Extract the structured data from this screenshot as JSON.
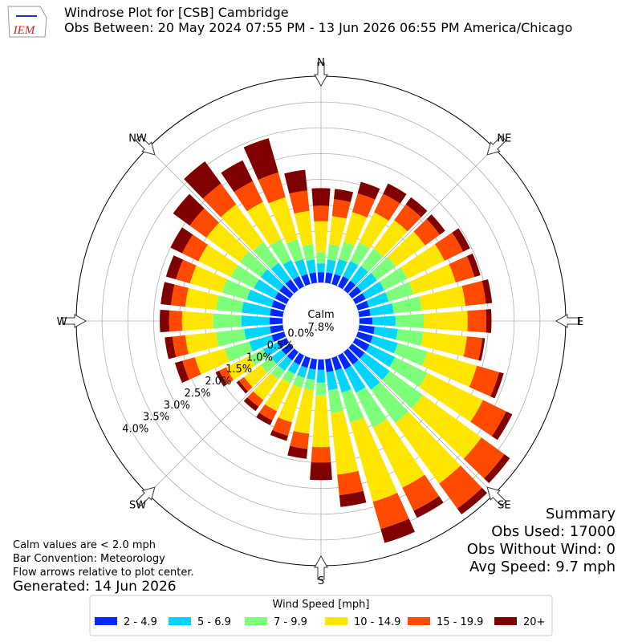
{
  "chart_data": {
    "type": "windrose",
    "title": "Windrose Plot for [CSB] Cambridge",
    "subtitle": "Obs Between: 20 May 2024 07:55 PM - 13 Jun 2026 06:55 PM America/Chicago",
    "logo_text": "IEM",
    "x": [
      0,
      10,
      20,
      30,
      40,
      50,
      60,
      70,
      80,
      90,
      100,
      110,
      120,
      130,
      140,
      150,
      160,
      170,
      180,
      190,
      200,
      210,
      220,
      230,
      240,
      250,
      260,
      270,
      280,
      290,
      300,
      310,
      320,
      330,
      340,
      350
    ],
    "xlim": [
      0,
      360
    ],
    "xticks": [
      {
        "value": 0,
        "label": "N"
      },
      {
        "value": 45,
        "label": "NE"
      },
      {
        "value": 90,
        "label": "E"
      },
      {
        "value": 135,
        "label": "SE"
      },
      {
        "value": 180,
        "label": "S"
      },
      {
        "value": 225,
        "label": "SW"
      },
      {
        "value": 270,
        "label": "W"
      },
      {
        "value": 315,
        "label": "NW"
      }
    ],
    "rlim": [
      0,
      4.0
    ],
    "rticks": [
      {
        "value": 0,
        "label": "0.0%"
      },
      {
        "value": 0.5,
        "label": "0.5%"
      },
      {
        "value": 1.0,
        "label": "1.0%"
      },
      {
        "value": 1.5,
        "label": "1.5%"
      },
      {
        "value": 2.0,
        "label": "2.0%"
      },
      {
        "value": 2.5,
        "label": "2.5%"
      },
      {
        "value": 3.0,
        "label": "3.0%"
      },
      {
        "value": 3.5,
        "label": "3.5%"
      },
      {
        "value": 4.0,
        "label": "4.0%"
      }
    ],
    "grid": true,
    "calm_label": "Calm",
    "calm_value": {
      "value": 7.8,
      "label": "7.8%"
    },
    "legend_title": "Wind Speed [mph]",
    "series": [
      {
        "name": "2 - 4.9",
        "color": "#0028ff",
        "values": [
          0.2,
          0.2,
          0.2,
          0.22,
          0.22,
          0.22,
          0.22,
          0.22,
          0.22,
          0.25,
          0.3,
          0.3,
          0.3,
          0.3,
          0.3,
          0.3,
          0.25,
          0.25,
          0.2,
          0.2,
          0.2,
          0.2,
          0.2,
          0.2,
          0.2,
          0.25,
          0.25,
          0.25,
          0.25,
          0.25,
          0.25,
          0.25,
          0.25,
          0.22,
          0.2,
          0.2
        ]
      },
      {
        "name": "5 - 6.9",
        "color": "#00d4ff",
        "values": [
          0.17,
          0.25,
          0.3,
          0.33,
          0.35,
          0.38,
          0.4,
          0.4,
          0.45,
          0.45,
          0.45,
          0.5,
          0.55,
          0.6,
          0.6,
          0.5,
          0.45,
          0.35,
          0.25,
          0.2,
          0.2,
          0.2,
          0.25,
          0.25,
          0.3,
          0.45,
          0.5,
          0.55,
          0.55,
          0.5,
          0.45,
          0.45,
          0.4,
          0.35,
          0.3,
          0.25
        ]
      },
      {
        "name": "7 - 9.9",
        "color": "#7dff7a",
        "values": [
          0.22,
          0.3,
          0.35,
          0.4,
          0.42,
          0.45,
          0.5,
          0.5,
          0.55,
          0.55,
          0.5,
          0.6,
          0.7,
          0.8,
          0.8,
          0.75,
          0.6,
          0.45,
          0.25,
          0.2,
          0.2,
          0.2,
          0.2,
          0.25,
          0.3,
          0.5,
          0.55,
          0.55,
          0.5,
          0.5,
          0.5,
          0.5,
          0.5,
          0.45,
          0.4,
          0.3
        ]
      },
      {
        "name": "10 - 14.9",
        "color": "#ffe600",
        "values": [
          0.6,
          0.55,
          0.6,
          0.65,
          0.68,
          0.7,
          0.8,
          0.85,
          0.85,
          0.85,
          0.85,
          1.0,
          1.2,
          1.4,
          1.45,
          1.3,
          1.6,
          1.2,
          1.0,
          0.85,
          0.7,
          0.6,
          0.5,
          0.4,
          0.5,
          0.6,
          0.6,
          0.6,
          0.6,
          0.65,
          0.7,
          0.8,
          0.9,
          0.8,
          0.85,
          0.65
        ]
      },
      {
        "name": "15 - 19.9",
        "color": "#ff4a00",
        "values": [
          0.3,
          0.33,
          0.38,
          0.4,
          0.38,
          0.35,
          0.4,
          0.38,
          0.4,
          0.36,
          0.3,
          0.45,
          0.5,
          0.55,
          0.6,
          0.5,
          0.55,
          0.4,
          0.3,
          0.3,
          0.27,
          0.2,
          0.16,
          0.12,
          0.15,
          0.25,
          0.25,
          0.25,
          0.28,
          0.28,
          0.35,
          0.4,
          0.5,
          0.45,
          0.5,
          0.4
        ]
      },
      {
        "name": "20+",
        "color": "#800000",
        "values": [
          0.34,
          0.2,
          0.23,
          0.22,
          0.17,
          0.13,
          0.15,
          0.12,
          0.12,
          0.1,
          0.05,
          0.09,
          0.13,
          0.13,
          0.14,
          0.15,
          0.28,
          0.23,
          0.34,
          0.19,
          0.1,
          0.1,
          0.1,
          0.06,
          0.08,
          0.15,
          0.15,
          0.18,
          0.2,
          0.2,
          0.25,
          0.4,
          0.53,
          0.45,
          0.69,
          0.4
        ]
      }
    ],
    "notes": [
      "Calm values are < 2.0 mph",
      "Bar Convention: Meteorology",
      "Flow arrows relative to plot center."
    ],
    "generated": "Generated: 14 Jun 2026",
    "summary": [
      "Summary",
      "Obs Used: 17000",
      "Obs Without Wind: 0",
      "Avg Speed: 9.7 mph"
    ]
  }
}
